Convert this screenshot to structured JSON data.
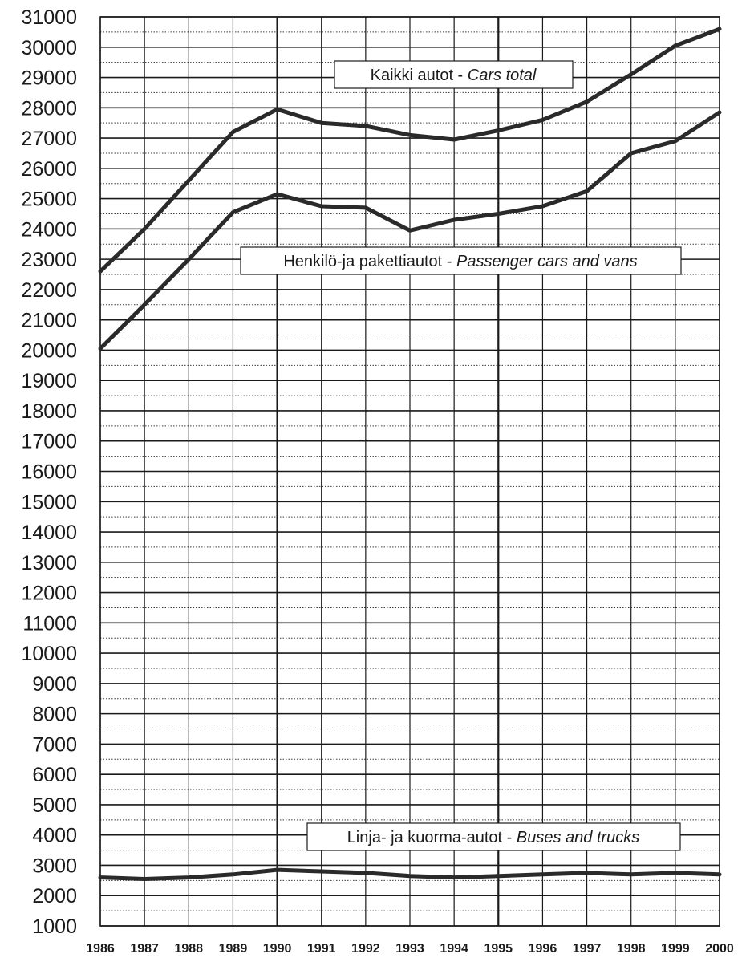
{
  "chart_data": {
    "type": "line",
    "x": [
      "1986",
      "1987",
      "1988",
      "1989",
      "1990",
      "1991",
      "1992",
      "1993",
      "1994",
      "1995",
      "1996",
      "1997",
      "1998",
      "1999",
      "2000"
    ],
    "ylim": [
      1000,
      31000
    ],
    "yticks": [
      1000,
      2000,
      3000,
      4000,
      5000,
      6000,
      7000,
      8000,
      9000,
      10000,
      11000,
      12000,
      13000,
      14000,
      15000,
      16000,
      17000,
      18000,
      19000,
      20000,
      21000,
      22000,
      23000,
      24000,
      25000,
      26000,
      27000,
      28000,
      29000,
      30000,
      31000
    ],
    "grid": true,
    "series": [
      {
        "name_fi": "Kaikki autot - ",
        "name_en": "Cars total",
        "values": [
          22600,
          24000,
          25600,
          27200,
          27950,
          27500,
          27400,
          27100,
          26950,
          27250,
          27600,
          28200,
          29100,
          30050,
          30600
        ]
      },
      {
        "name_fi": "Henkilö-ja pakettiautot - ",
        "name_en": "Passenger cars and vans",
        "values": [
          20050,
          21500,
          23000,
          24550,
          25150,
          24750,
          24700,
          23950,
          24300,
          24500,
          24750,
          25250,
          26500,
          26900,
          27850
        ]
      },
      {
        "name_fi": "Linja- ja kuorma-autot - ",
        "name_en": "Buses and trucks",
        "values": [
          2600,
          2550,
          2600,
          2700,
          2850,
          2800,
          2750,
          2650,
          2600,
          2650,
          2700,
          2750,
          2700,
          2750,
          2700
        ]
      }
    ],
    "colors": {
      "line": "#2a2a2a",
      "grid": "#1a1a1a",
      "background": "#ffffff"
    }
  }
}
